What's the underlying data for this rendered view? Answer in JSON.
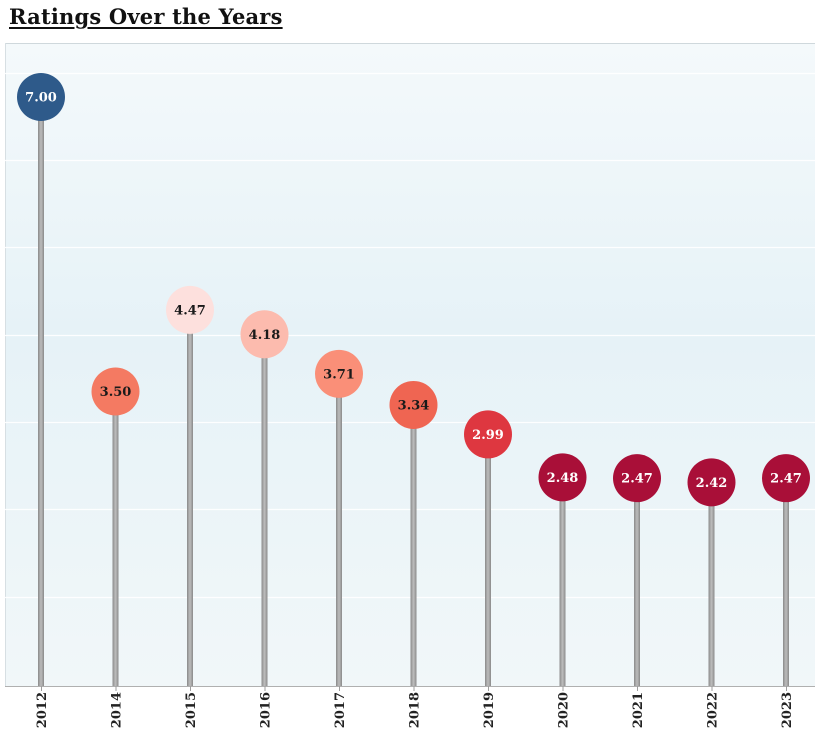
{
  "title": "Ratings Over the Years",
  "chart_data": {
    "type": "lollipop",
    "title": "Ratings Over the Years",
    "xlabel": "",
    "ylabel": "",
    "categories": [
      "2012",
      "2014",
      "2015",
      "2016",
      "2017",
      "2018",
      "2019",
      "2020",
      "2021",
      "2022",
      "2023"
    ],
    "values": [
      7.0,
      3.5,
      4.47,
      4.18,
      3.71,
      3.34,
      2.99,
      2.48,
      2.47,
      2.42,
      2.47
    ],
    "labels": [
      "7.00",
      "3.50",
      "4.47",
      "4.18",
      "3.71",
      "3.34",
      "2.99",
      "2.48",
      "2.47",
      "2.42",
      "2.47"
    ],
    "colors": [
      "#2e5a8a",
      "#f47a62",
      "#fde0dd",
      "#fcbbae",
      "#fa8f78",
      "#ef6552",
      "#de3740",
      "#a90f38",
      "#a90f38",
      "#a90f38",
      "#a90f38"
    ],
    "label_colors": [
      "#ffffff",
      "#1a1a1a",
      "#1a1a1a",
      "#1a1a1a",
      "#1a1a1a",
      "#1a1a1a",
      "#ffffff",
      "#ffffff",
      "#ffffff",
      "#ffffff",
      "#ffffff"
    ],
    "ylim": [
      0,
      7.0
    ],
    "grid": true,
    "legend": "none",
    "stem_color": "#9e9e9e",
    "background_color": "#e9f3f8"
  }
}
